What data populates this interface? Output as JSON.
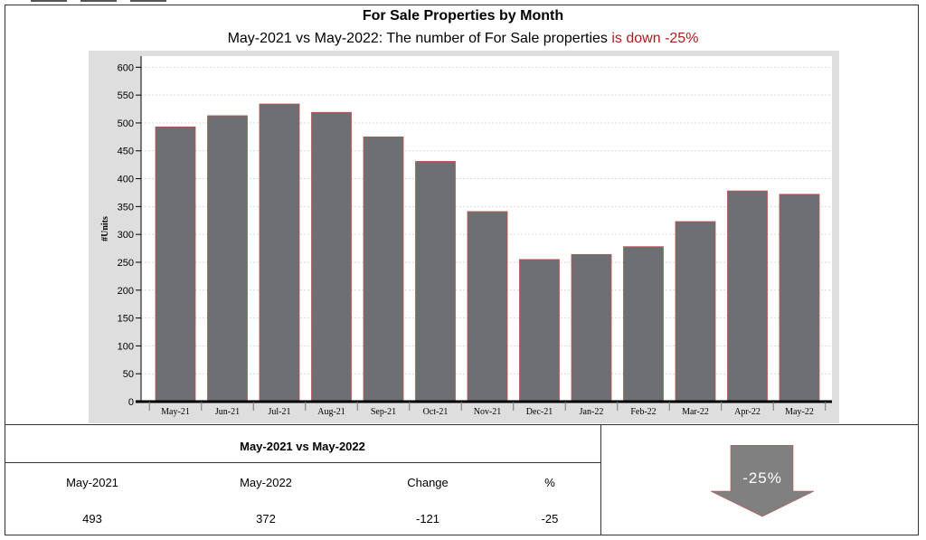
{
  "header": {
    "title": "For Sale Properties by Month",
    "subtitle_prefix": "May-2021 vs May-2022: The number of For Sale properties ",
    "subtitle_highlight": "is down -25%",
    "highlight_color": "#b01c1c"
  },
  "chart_data": {
    "type": "bar",
    "title": "For Sale Properties by Month",
    "ylabel": "#Units",
    "xlabel": "",
    "ylim": [
      0,
      620
    ],
    "yticks": [
      0,
      50,
      100,
      150,
      200,
      250,
      300,
      350,
      400,
      450,
      500,
      550,
      600
    ],
    "grid": true,
    "legend": "none",
    "categories": [
      "May-21",
      "Jun-21",
      "Jul-21",
      "Aug-21",
      "Sep-21",
      "Oct-21",
      "Nov-21",
      "Dec-21",
      "Jan-22",
      "Feb-22",
      "Mar-22",
      "Apr-22",
      "May-22"
    ],
    "values": [
      493,
      513,
      534,
      519,
      475,
      431,
      341,
      255,
      264,
      278,
      323,
      378,
      372
    ],
    "bar_color": "#6d6f72",
    "bar_outline_color": "#c0504d",
    "plot_background": "#ffffff",
    "frame_background": "#dedede"
  },
  "comparison": {
    "title": "May-2021 vs May-2022",
    "headers": [
      "May-2021",
      "May-2022",
      "Change",
      "%"
    ],
    "values": [
      "493",
      "372",
      "-121",
      "-25"
    ]
  },
  "indicator": {
    "label": "-25%",
    "direction": "down",
    "color": "#808080"
  }
}
